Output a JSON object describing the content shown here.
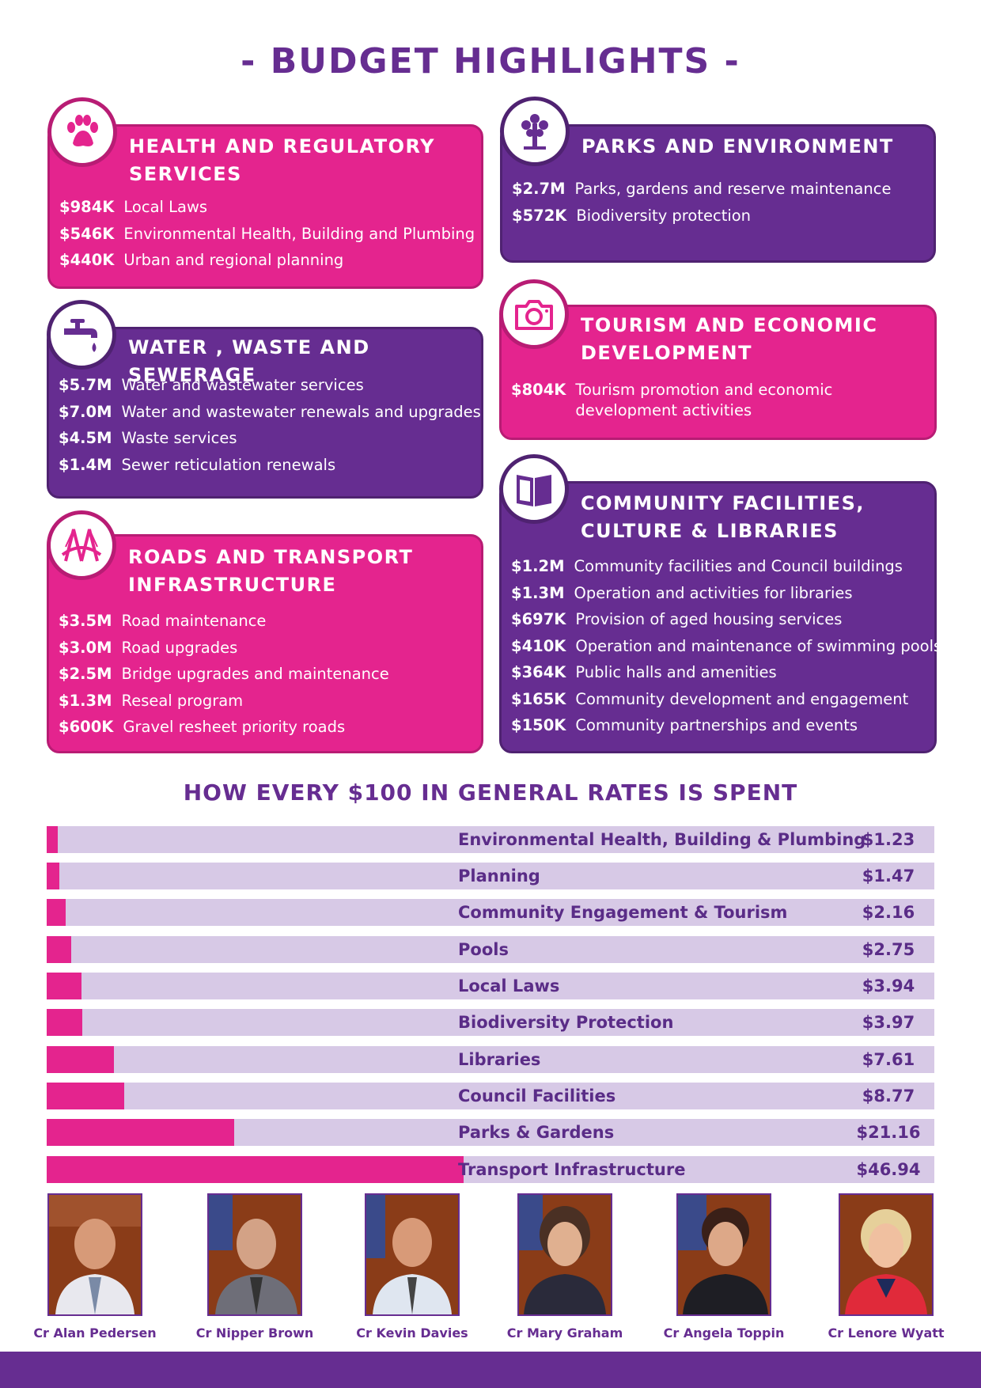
{
  "title": "- BUDGET HIGHLIGHTS -",
  "cards": {
    "health": {
      "title_line1": "HEALTH AND REGULATORY",
      "title_line2": "SERVICES",
      "icon": "paw-icon",
      "items": [
        {
          "amount": "$984K",
          "label": "Local Laws"
        },
        {
          "amount": "$546K",
          "label": "Environmental Health, Building  and Plumbing"
        },
        {
          "amount": "$440K",
          "label": "Urban and regional planning"
        }
      ]
    },
    "parks": {
      "title_line1": "PARKS AND ENVIRONMENT",
      "icon": "tree-icon",
      "items": [
        {
          "amount": "$2.7M",
          "label": "Parks, gardens and reserve maintenance"
        },
        {
          "amount": "$572K",
          "label": "Biodiversity protection"
        }
      ]
    },
    "water": {
      "title_line1": "WATER , WASTE  AND SEWERAGE",
      "icon": "tap-icon",
      "items": [
        {
          "amount": "$5.7M",
          "label": "Water and wastewater services"
        },
        {
          "amount": "$7.0M",
          "label": "Water and wastewater renewals and upgrades"
        },
        {
          "amount": "$4.5M",
          "label": "Waste services"
        },
        {
          "amount": "$1.4M",
          "label": "Sewer reticulation renewals"
        }
      ]
    },
    "tourism": {
      "title_line1": "TOURISM AND ECONOMIC",
      "title_line2": "DEVELOPMENT",
      "icon": "camera-icon",
      "items": [
        {
          "amount": "$804K",
          "label": "Tourism promotion and economic development activities"
        }
      ]
    },
    "roads": {
      "title_line1": "ROADS AND TRANSPORT",
      "title_line2": "INFRASTRUCTURE",
      "icon": "bridge-icon",
      "items": [
        {
          "amount": "$3.5M",
          "label": "Road maintenance"
        },
        {
          "amount": "$3.0M",
          "label": "Road upgrades"
        },
        {
          "amount": "$2.5M",
          "label": "Bridge upgrades and maintenance"
        },
        {
          "amount": "$1.3M",
          "label": "Reseal program"
        },
        {
          "amount": "$600K",
          "label": "Gravel resheet priority roads"
        }
      ]
    },
    "community": {
      "title_line1": "COMMUNITY FACILITIES,",
      "title_line2": "CULTURE & LIBRARIES",
      "icon": "book-icon",
      "items": [
        {
          "amount": "$1.2M",
          "label": "Community facilities and Council buildings"
        },
        {
          "amount": "$1.3M",
          "label": "Operation and activities for libraries"
        },
        {
          "amount": "$697K",
          "label": "Provision of aged housing services"
        },
        {
          "amount": "$410K",
          "label": "Operation and maintenance of swimming pools"
        },
        {
          "amount": "$364K",
          "label": "Public halls and amenities"
        },
        {
          "amount": "$165K",
          "label": "Community development and engagement"
        },
        {
          "amount": "$150K",
          "label": "Community partnerships and events"
        }
      ]
    }
  },
  "rates": {
    "title": "HOW EVERY $100 IN GENERAL RATES IS SPENT",
    "rows": [
      {
        "label": "Environmental Health, Building & Plumbing",
        "value_text": "$1.23",
        "value": 1.23
      },
      {
        "label": "Planning",
        "value_text": "$1.47",
        "value": 1.47
      },
      {
        "label": "Community Engagement & Tourism",
        "value_text": "$2.16",
        "value": 2.16
      },
      {
        "label": "Pools",
        "value_text": "$2.75",
        "value": 2.75
      },
      {
        "label": "Local Laws",
        "value_text": "$3.94",
        "value": 3.94
      },
      {
        "label": "Biodiversity Protection",
        "value_text": "$3.97",
        "value": 3.97
      },
      {
        "label": "Libraries",
        "value_text": "$7.61",
        "value": 7.61
      },
      {
        "label": "Council Facilities",
        "value_text": "$8.77",
        "value": 8.77
      },
      {
        "label": "Parks & Gardens",
        "value_text": "$21.16",
        "value": 21.16
      },
      {
        "label": "Transport Infrastructure",
        "value_text": "$46.94",
        "value": 46.94
      }
    ],
    "scale_max": 100
  },
  "councillors": [
    {
      "name": "Cr Alan Pedersen"
    },
    {
      "name": "Cr Nipper Brown"
    },
    {
      "name": "Cr Kevin Davies"
    },
    {
      "name": "Cr Mary Graham"
    },
    {
      "name": "Cr Angela Toppin"
    },
    {
      "name": "Cr Lenore Wyatt"
    }
  ],
  "colors": {
    "pink": "#e4248e",
    "purple": "#662d91",
    "bar_track": "#d7c9e6"
  }
}
